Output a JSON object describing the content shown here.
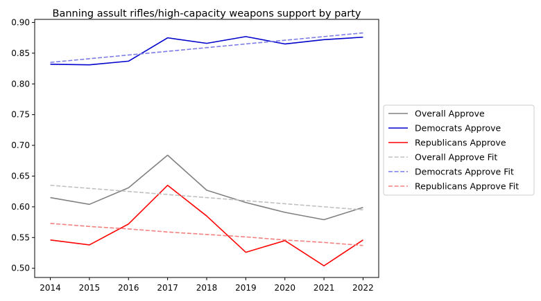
{
  "chart_data": {
    "type": "line",
    "title": "Banning assult rifles/high-capacity weapons support by party",
    "xlabel": "",
    "ylabel": "",
    "x": [
      2014,
      2015,
      2016,
      2017,
      2018,
      2019,
      2020,
      2021,
      2022
    ],
    "xlim": [
      2013.6,
      2022.4
    ],
    "ylim": [
      0.485,
      0.905
    ],
    "yticks": [
      0.5,
      0.55,
      0.6,
      0.65,
      0.7,
      0.75,
      0.8,
      0.85,
      0.9
    ],
    "ytick_labels": [
      "0.50",
      "0.55",
      "0.60",
      "0.65",
      "0.70",
      "0.75",
      "0.80",
      "0.85",
      "0.90"
    ],
    "grid": false,
    "legend_placement": "outside-right",
    "series": [
      {
        "name": "Overall Approve",
        "color": "#808080",
        "style": "solid",
        "values": [
          0.615,
          0.604,
          0.631,
          0.684,
          0.627,
          0.607,
          0.591,
          0.579,
          0.599
        ]
      },
      {
        "name": "Democrats Approve",
        "color": "#0000cc",
        "style": "solid",
        "values": [
          0.832,
          0.831,
          0.837,
          0.875,
          0.866,
          0.877,
          0.865,
          0.872,
          0.876
        ]
      },
      {
        "name": "Republicans Approve",
        "color": "#ff0000",
        "style": "solid",
        "values": [
          0.546,
          0.538,
          0.572,
          0.635,
          0.585,
          0.526,
          0.545,
          0.504,
          0.546
        ]
      },
      {
        "name": "Overall Approve Fit",
        "color": "#c0c0c0",
        "style": "dashed",
        "values": [
          0.635,
          0.63,
          0.625,
          0.62,
          0.615,
          0.61,
          0.605,
          0.6,
          0.595
        ]
      },
      {
        "name": "Democrats Approve Fit",
        "color": "#7b7be8",
        "style": "dashed",
        "values": [
          0.835,
          0.841,
          0.847,
          0.853,
          0.859,
          0.865,
          0.871,
          0.877,
          0.883
        ]
      },
      {
        "name": "Republicans Approve Fit",
        "color": "#f48080",
        "style": "dashed",
        "values": [
          0.573,
          0.568,
          0.564,
          0.559,
          0.555,
          0.551,
          0.546,
          0.542,
          0.537
        ]
      }
    ]
  }
}
